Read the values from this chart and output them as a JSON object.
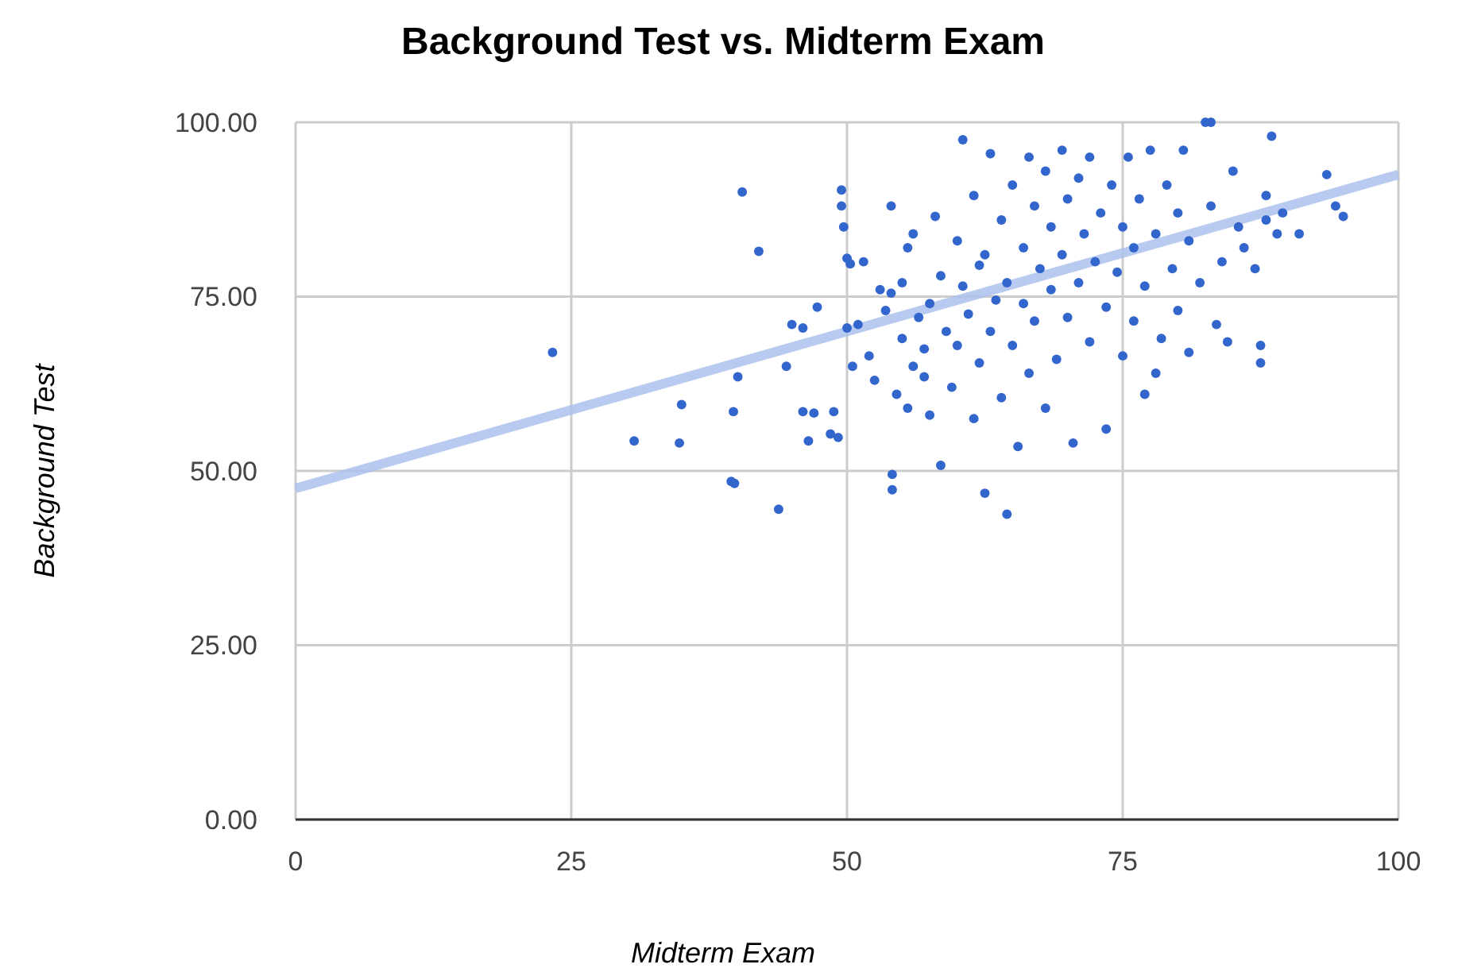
{
  "chart_data": {
    "type": "scatter",
    "title": "Background Test vs. Midterm Exam",
    "xlabel": "Midterm Exam",
    "ylabel": "Background Test",
    "xlim": [
      0,
      100
    ],
    "ylim": [
      0,
      100
    ],
    "xticks": [
      0,
      25,
      50,
      75,
      100
    ],
    "yticks": [
      {
        "value": 0,
        "label": "0.00"
      },
      {
        "value": 25,
        "label": "25.00"
      },
      {
        "value": 50,
        "label": "50.00"
      },
      {
        "value": 75,
        "label": "75.00"
      },
      {
        "value": 100,
        "label": "100.00"
      }
    ],
    "grid": true,
    "marker": "circle",
    "series": [
      {
        "type": "line",
        "marker": "none",
        "color": "#abc1ec",
        "x": [
          0,
          100
        ],
        "values": [
          47.5,
          92.5
        ]
      },
      {
        "color": "#3366cc",
        "x": [
          23.3,
          30.7,
          34.8,
          35,
          39.5,
          39.8,
          39.7,
          40.1,
          40.5,
          42,
          43.8,
          44.5,
          45,
          46,
          46,
          46.5,
          47,
          47.3,
          48.5,
          48.8,
          49.2,
          49.5,
          49.5,
          49.7,
          50,
          50.3,
          50,
          50.5,
          51,
          51.5,
          52,
          52.5,
          53,
          53.5,
          54,
          54,
          54.1,
          54.1,
          54.5,
          55,
          55,
          55.5,
          55.5,
          56,
          56,
          56.5,
          57,
          57,
          57.5,
          57.5,
          58,
          58.5,
          58.5,
          59,
          59.5,
          60,
          60,
          60.5,
          60.5,
          61,
          61.5,
          61.5,
          62,
          62,
          62.5,
          62.5,
          63,
          63,
          63.5,
          64,
          64,
          64.5,
          64.5,
          65,
          65,
          65.5,
          66,
          66,
          66.5,
          66.5,
          67,
          67,
          67.5,
          68,
          68,
          68.5,
          68.5,
          69,
          69.5,
          69.5,
          70,
          70,
          70.5,
          71,
          71,
          71.5,
          72,
          72,
          72.5,
          73,
          73.5,
          73.5,
          74,
          74.5,
          75,
          75,
          75.5,
          76,
          76,
          76.5,
          77,
          77,
          77.5,
          78,
          78,
          78.5,
          79,
          79.5,
          80,
          80,
          80.5,
          81,
          81,
          82,
          82.5,
          83,
          83,
          83.5,
          84,
          84.5,
          85,
          85.5,
          86,
          87,
          87.5,
          87.5,
          88,
          88,
          88.5,
          89,
          89.5,
          93.5,
          94.3,
          95,
          91
        ],
        "values": [
          67,
          54.3,
          54,
          59.5,
          48.5,
          48.2,
          58.5,
          63.5,
          90,
          81.5,
          44.5,
          65,
          71,
          70.5,
          58.5,
          54.3,
          58.3,
          73.5,
          55.3,
          58.5,
          54.8,
          88,
          90.3,
          85,
          80.5,
          79.7,
          70.5,
          65,
          71,
          80,
          66.5,
          63,
          76,
          73,
          75.5,
          88,
          49.5,
          47.3,
          61,
          69,
          77,
          82,
          59,
          84,
          65,
          72,
          63.5,
          67.5,
          58,
          74,
          86.5,
          78,
          50.8,
          70,
          62,
          83,
          68,
          97.5,
          76.5,
          72.5,
          89.5,
          57.5,
          79.5,
          65.5,
          46.8,
          81,
          95.5,
          70,
          74.5,
          86,
          60.5,
          43.8,
          77,
          91,
          68,
          53.5,
          82,
          74,
          95,
          64,
          88,
          71.5,
          79,
          93,
          59,
          85,
          76,
          66,
          96,
          81,
          89,
          72,
          54,
          77,
          92,
          84,
          68.5,
          95,
          80,
          87,
          73.5,
          56,
          91,
          78.5,
          85,
          66.5,
          95,
          82,
          71.5,
          89,
          61,
          76.5,
          96,
          84,
          64,
          69,
          91,
          79,
          87,
          73,
          96,
          83,
          67,
          77,
          100,
          100,
          88,
          71,
          80,
          68.5,
          93,
          85,
          82,
          79,
          68,
          65.5,
          89.5,
          86,
          98,
          84,
          87,
          92.5,
          88,
          86.5,
          84
        ]
      }
    ]
  }
}
